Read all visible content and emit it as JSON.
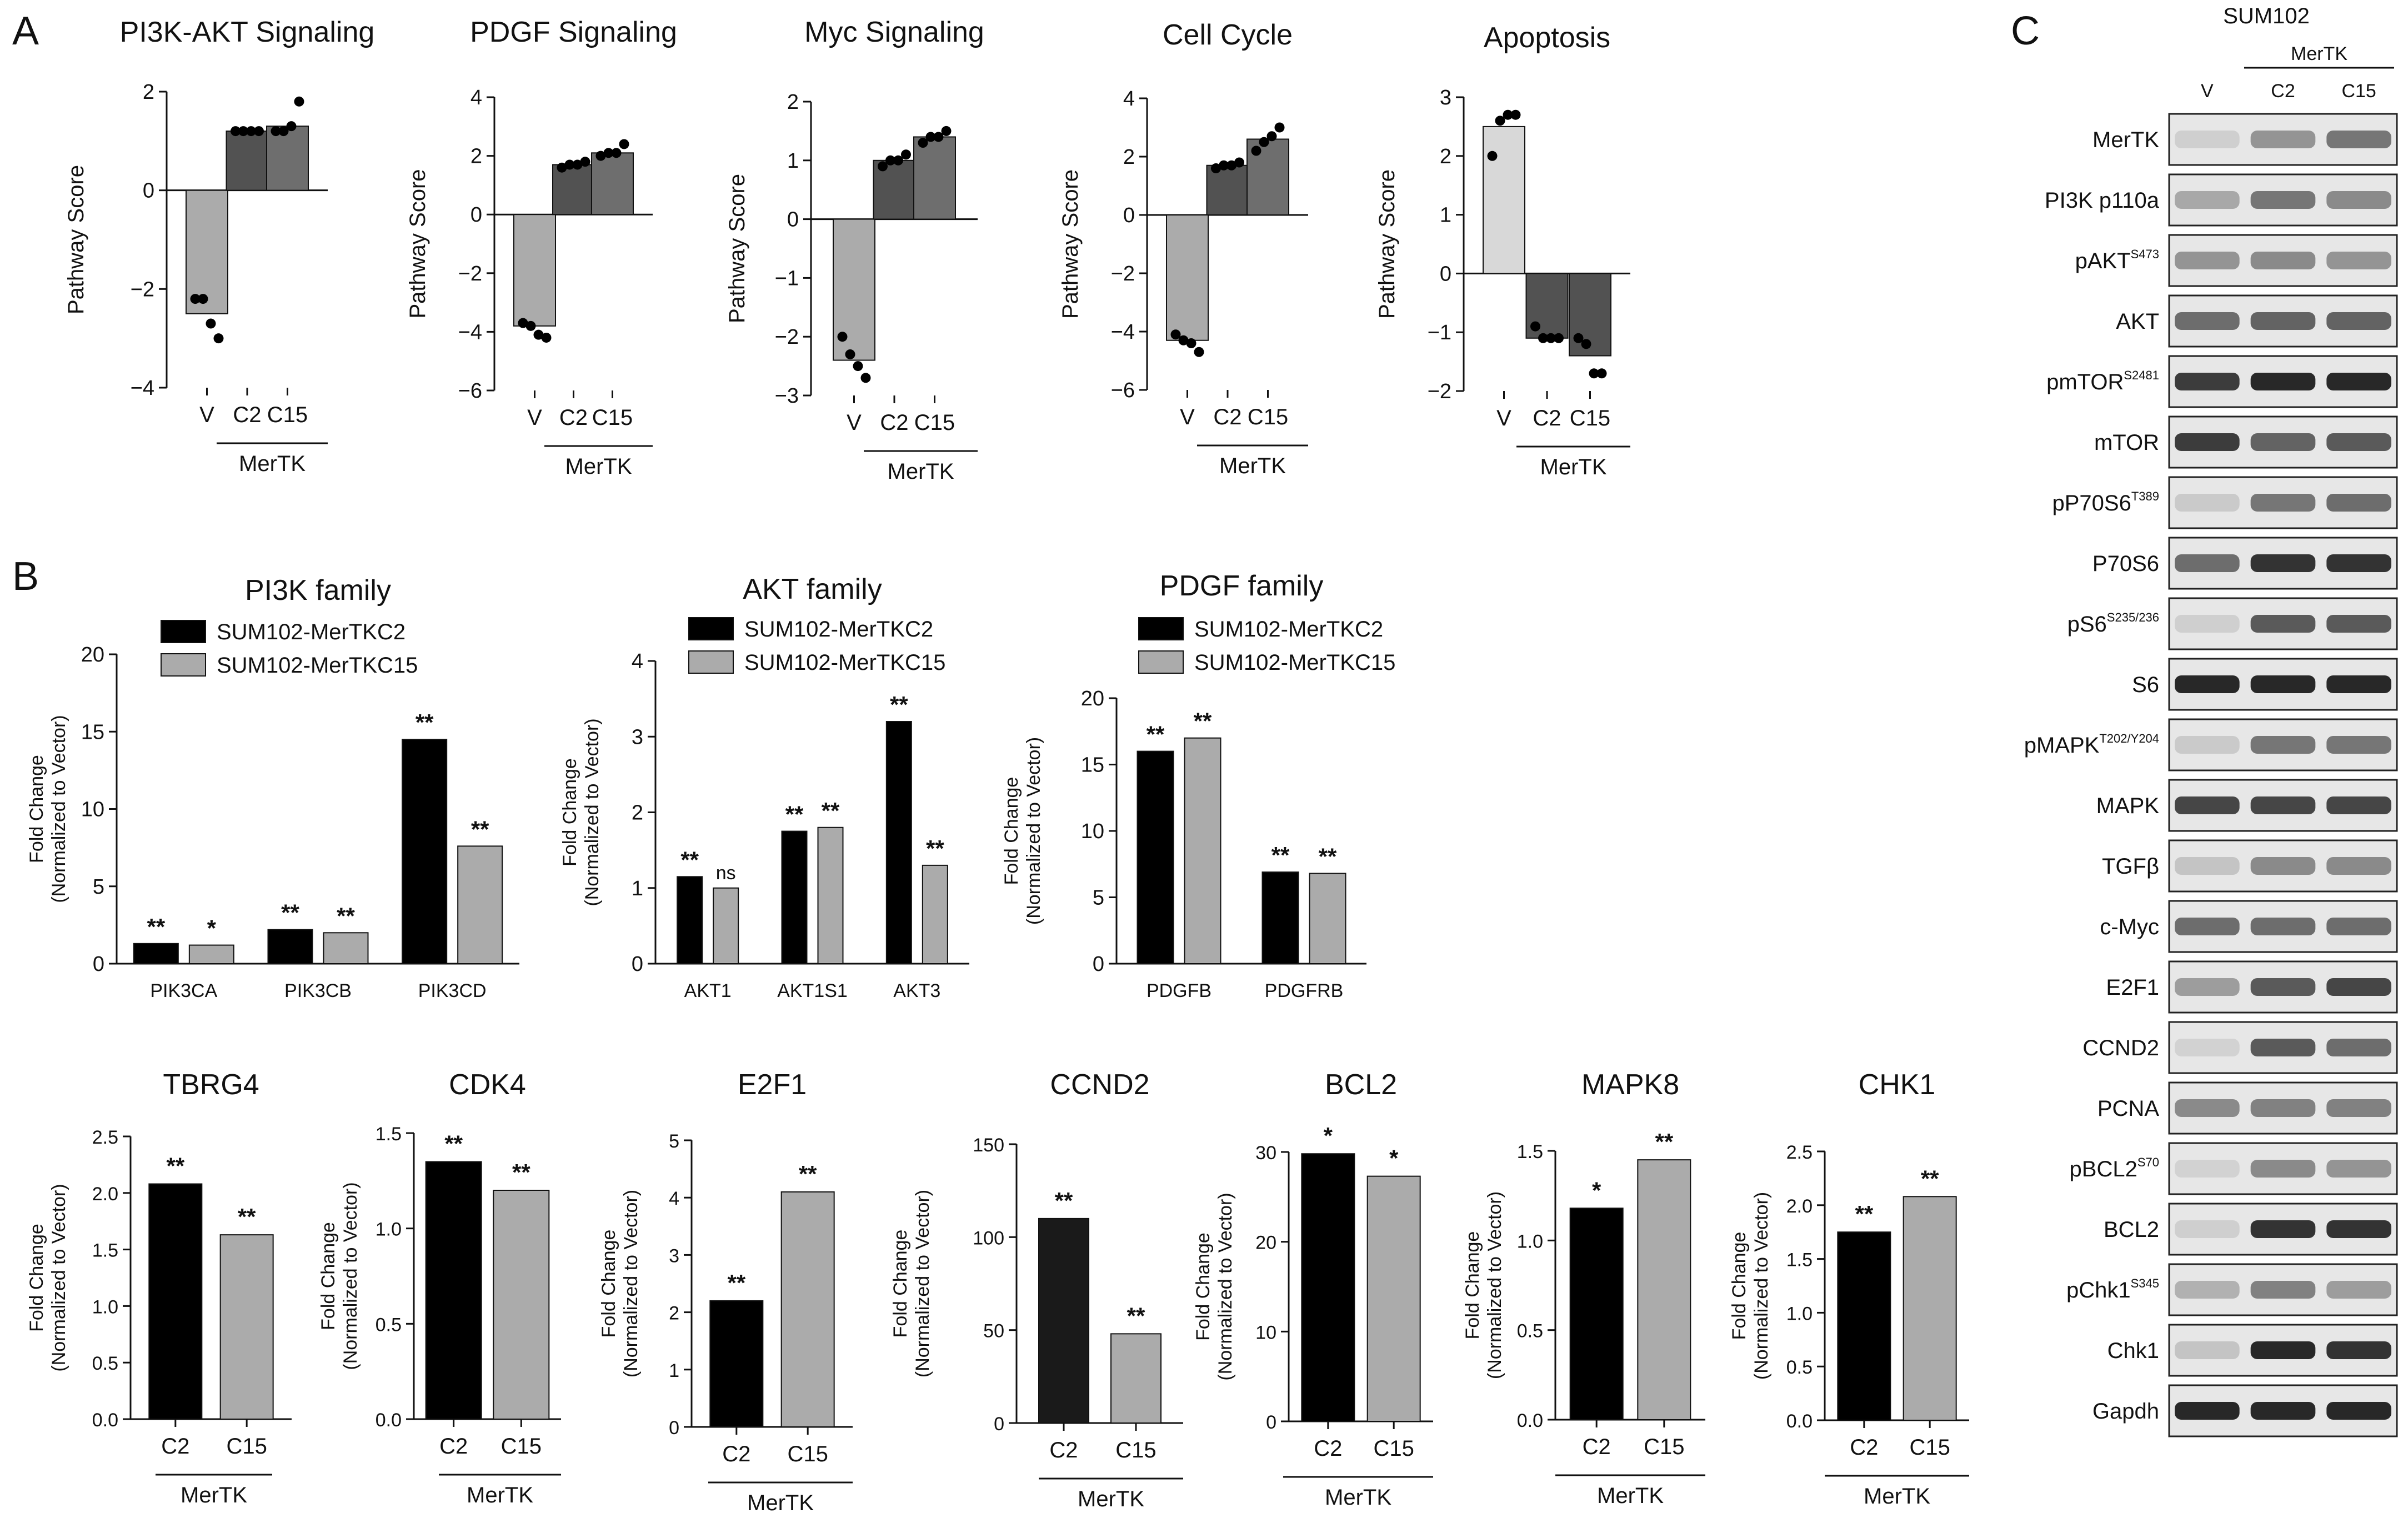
{
  "panels": {
    "a": "A",
    "b": "B",
    "c": "C"
  },
  "group_label": "MerTK",
  "colors": {
    "black": "#000000",
    "dark_gray": "#525252",
    "mid_gray": "#6e6e6e",
    "light_gray": "#ababab",
    "lighter_gray": "#d8d8d8"
  },
  "chart_data": [
    {
      "id": "a1",
      "type": "bar",
      "panel": "A",
      "title": "PI3K-AKT Signaling",
      "ylabel": "Pathway Score",
      "categories": [
        "V",
        "C2",
        "C15"
      ],
      "values": [
        -2.5,
        1.2,
        1.3
      ],
      "ylim": [
        -4,
        2
      ],
      "yticks": [
        2,
        0,
        -2,
        -4
      ],
      "points": [
        [
          -2.2,
          -2.2,
          -2.7,
          -3.0
        ],
        [
          1.2,
          1.2,
          1.2,
          1.2
        ],
        [
          1.2,
          1.2,
          1.3,
          1.8
        ]
      ],
      "bar_colors": [
        "#ababab",
        "#525252",
        "#6e6e6e"
      ],
      "group": "MerTK"
    },
    {
      "id": "a2",
      "type": "bar",
      "panel": "A",
      "title": "PDGF Signaling",
      "ylabel": "Pathway Score",
      "categories": [
        "V",
        "C2",
        "C15"
      ],
      "values": [
        -3.8,
        1.7,
        2.1
      ],
      "ylim": [
        -6,
        4
      ],
      "yticks": [
        4,
        2,
        0,
        -2,
        -4,
        -6
      ],
      "points": [
        [
          -3.7,
          -3.8,
          -4.1,
          -4.2
        ],
        [
          1.6,
          1.7,
          1.7,
          1.8
        ],
        [
          2.0,
          2.1,
          2.1,
          2.4
        ]
      ],
      "bar_colors": [
        "#ababab",
        "#525252",
        "#6e6e6e"
      ],
      "group": "MerTK"
    },
    {
      "id": "a3",
      "type": "bar",
      "panel": "A",
      "title": "Myc Signaling",
      "ylabel": "Pathway Score",
      "categories": [
        "V",
        "C2",
        "C15"
      ],
      "values": [
        -2.4,
        1.0,
        1.4
      ],
      "ylim": [
        -3,
        2
      ],
      "yticks": [
        2,
        1,
        0,
        -1,
        -2,
        -3
      ],
      "points": [
        [
          -2.0,
          -2.3,
          -2.5,
          -2.7
        ],
        [
          0.9,
          1.0,
          1.0,
          1.1
        ],
        [
          1.3,
          1.4,
          1.4,
          1.5
        ]
      ],
      "bar_colors": [
        "#ababab",
        "#525252",
        "#6e6e6e"
      ],
      "group": "MerTK"
    },
    {
      "id": "a4",
      "type": "bar",
      "panel": "A",
      "title": "Cell Cycle",
      "ylabel": "Pathway Score",
      "categories": [
        "V",
        "C2",
        "C15"
      ],
      "values": [
        -4.3,
        1.7,
        2.6
      ],
      "ylim": [
        -6,
        4
      ],
      "yticks": [
        4,
        2,
        0,
        -2,
        -4,
        -6
      ],
      "points": [
        [
          -4.1,
          -4.3,
          -4.4,
          -4.7
        ],
        [
          1.6,
          1.7,
          1.7,
          1.8
        ],
        [
          2.2,
          2.5,
          2.7,
          3.0
        ]
      ],
      "bar_colors": [
        "#ababab",
        "#525252",
        "#6e6e6e"
      ],
      "group": "MerTK"
    },
    {
      "id": "a5",
      "type": "bar",
      "panel": "A",
      "title": "Apoptosis",
      "ylabel": "Pathway Score",
      "categories": [
        "V",
        "C2",
        "C15"
      ],
      "values": [
        2.5,
        -1.1,
        -1.4
      ],
      "ylim": [
        -2,
        3
      ],
      "yticks": [
        3,
        2,
        1,
        0,
        -1,
        -2
      ],
      "points": [
        [
          2.0,
          2.6,
          2.7,
          2.7
        ],
        [
          -0.9,
          -1.1,
          -1.1,
          -1.1
        ],
        [
          -1.1,
          -1.2,
          -1.7,
          -1.7
        ]
      ],
      "bar_colors": [
        "#d8d8d8",
        "#525252",
        "#525252"
      ],
      "group": "MerTK"
    },
    {
      "id": "b1",
      "type": "bar",
      "panel": "B",
      "title": "PI3K family",
      "ylabel": [
        "Fold Change",
        "(Normalized to Vector)"
      ],
      "categories": [
        "PIK3CA",
        "PIK3CB",
        "PIK3CD"
      ],
      "ylim": [
        0,
        20
      ],
      "yticks": [
        20,
        15,
        10,
        5,
        0
      ],
      "series": [
        {
          "name": "SUM102-MerTKC2",
          "values": [
            1.3,
            2.2,
            14.5
          ],
          "labels": [
            "**",
            "**",
            "**"
          ]
        },
        {
          "name": "SUM102-MerTKC15",
          "values": [
            1.2,
            2.0,
            7.6
          ],
          "labels": [
            "*",
            "**",
            "**"
          ]
        }
      ],
      "series_colors": [
        "#000000",
        "#ababab"
      ]
    },
    {
      "id": "b2",
      "type": "bar",
      "panel": "B",
      "title": "AKT family",
      "ylabel": [
        "Fold Change",
        "(Normalized to Vector)"
      ],
      "categories": [
        "AKT1",
        "AKT1S1",
        "AKT3"
      ],
      "ylim": [
        0,
        4
      ],
      "yticks": [
        4,
        3,
        2,
        1,
        0
      ],
      "series": [
        {
          "name": "SUM102-MerTKC2",
          "values": [
            1.15,
            1.75,
            3.2
          ],
          "labels": [
            "**",
            "**",
            "**"
          ]
        },
        {
          "name": "SUM102-MerTKC15",
          "values": [
            1.0,
            1.8,
            1.3
          ],
          "labels": [
            "ns",
            "**",
            "**"
          ]
        }
      ],
      "series_colors": [
        "#000000",
        "#ababab"
      ]
    },
    {
      "id": "b3",
      "type": "bar",
      "panel": "B",
      "title": "PDGF family",
      "ylabel": [
        "Fold Change",
        "(Normalized to Vector)"
      ],
      "categories": [
        "PDGFB",
        "PDGFRB"
      ],
      "ylim": [
        0,
        20
      ],
      "yticks": [
        20,
        15,
        10,
        5,
        0
      ],
      "series": [
        {
          "name": "SUM102-MerTKC2",
          "values": [
            16.0,
            6.9
          ],
          "labels": [
            "**",
            "**"
          ]
        },
        {
          "name": "SUM102-MerTKC15",
          "values": [
            17.0,
            6.8
          ],
          "labels": [
            "**",
            "**"
          ]
        }
      ],
      "series_colors": [
        "#000000",
        "#ababab"
      ]
    },
    {
      "id": "b4",
      "type": "bar",
      "panel": "B",
      "title": "TBRG4",
      "ylabel": [
        "Fold Change",
        "(Normalized to Vector)"
      ],
      "categories": [
        "C2",
        "C15"
      ],
      "values": [
        2.08,
        1.63
      ],
      "labels": [
        "**",
        "**"
      ],
      "ylim": [
        0,
        2.5
      ],
      "yticks": [
        2.5,
        2.0,
        1.5,
        1.0,
        0.5,
        0.0
      ],
      "bar_colors": [
        "#000000",
        "#ababab"
      ],
      "group": "MerTK"
    },
    {
      "id": "b5",
      "type": "bar",
      "panel": "B",
      "title": "CDK4",
      "ylabel": [
        "Fold Change",
        "(Normalized to Vector)"
      ],
      "categories": [
        "C2",
        "C15"
      ],
      "values": [
        1.35,
        1.2
      ],
      "labels": [
        "**",
        "**"
      ],
      "ylim": [
        0,
        1.5
      ],
      "yticks": [
        1.5,
        1.0,
        0.5,
        0.0
      ],
      "bar_colors": [
        "#000000",
        "#ababab"
      ],
      "group": "MerTK"
    },
    {
      "id": "b6",
      "type": "bar",
      "panel": "B",
      "title": "E2F1",
      "ylabel": [
        "Fold Change",
        "(Normalized to Vector)"
      ],
      "categories": [
        "C2",
        "C15"
      ],
      "values": [
        2.2,
        4.1
      ],
      "labels": [
        "**",
        "**"
      ],
      "ylim": [
        0,
        5
      ],
      "yticks": [
        5,
        4,
        3,
        2,
        1,
        0
      ],
      "bar_colors": [
        "#000000",
        "#ababab"
      ],
      "group": "MerTK"
    },
    {
      "id": "b7",
      "type": "bar",
      "panel": "B",
      "title": "CCND2",
      "ylabel": [
        "Fold Change",
        "(Normalized to Vector)"
      ],
      "categories": [
        "C2",
        "C15"
      ],
      "values": [
        110,
        48
      ],
      "labels": [
        "**",
        "**"
      ],
      "ylim": [
        0,
        150
      ],
      "yticks": [
        150,
        100,
        50,
        0
      ],
      "bar_colors": [
        "#1a1a1a",
        "#ababab"
      ],
      "group": "MerTK"
    },
    {
      "id": "b8",
      "type": "bar",
      "panel": "B",
      "title": "BCL2",
      "ylabel": [
        "Fold Change",
        "(Normalized to Vector)"
      ],
      "categories": [
        "C2",
        "C15"
      ],
      "values": [
        29.8,
        27.3
      ],
      "labels": [
        "*",
        "*"
      ],
      "ylim": [
        0,
        30
      ],
      "yticks": [
        30,
        20,
        10,
        0
      ],
      "bar_colors": [
        "#000000",
        "#ababab"
      ],
      "group": "MerTK"
    },
    {
      "id": "b9",
      "type": "bar",
      "panel": "B",
      "title": "MAPK8",
      "ylabel": [
        "Fold Change",
        "(Normalized to Vector)"
      ],
      "categories": [
        "C2",
        "C15"
      ],
      "values": [
        1.18,
        1.45
      ],
      "labels": [
        "*",
        "**"
      ],
      "ylim": [
        0,
        1.5
      ],
      "yticks": [
        1.5,
        1.0,
        0.5,
        0.0
      ],
      "bar_colors": [
        "#000000",
        "#ababab"
      ],
      "group": "MerTK"
    },
    {
      "id": "b10",
      "type": "bar",
      "panel": "B",
      "title": "CHK1",
      "ylabel": [
        "Fold Change",
        "(Normalized to Vector)"
      ],
      "categories": [
        "C2",
        "C15"
      ],
      "values": [
        1.75,
        2.08
      ],
      "labels": [
        "**",
        "**"
      ],
      "ylim": [
        0,
        2.5
      ],
      "yticks": [
        2.5,
        2.0,
        1.5,
        1.0,
        0.5,
        0.0
      ],
      "bar_colors": [
        "#000000",
        "#ababab"
      ],
      "group": "MerTK"
    }
  ],
  "western_blot": {
    "cell_line": "SUM102",
    "group": "MerTK",
    "lanes": [
      "V",
      "C2",
      "C15"
    ],
    "bands": [
      {
        "label": "MerTK",
        "sup": "",
        "intensity": [
          0.1,
          0.4,
          0.55
        ]
      },
      {
        "label": "PI3K p110a",
        "sup": "",
        "intensity": [
          0.3,
          0.55,
          0.45
        ]
      },
      {
        "label": "pAKT",
        "sup": "S473",
        "intensity": [
          0.4,
          0.45,
          0.4
        ]
      },
      {
        "label": "AKT",
        "sup": "",
        "intensity": [
          0.6,
          0.65,
          0.65
        ]
      },
      {
        "label": "pmTOR",
        "sup": "S2481",
        "intensity": [
          0.85,
          0.95,
          0.95
        ]
      },
      {
        "label": "mTOR",
        "sup": "",
        "intensity": [
          0.85,
          0.65,
          0.7
        ]
      },
      {
        "label": "pP70S6",
        "sup": "T389",
        "intensity": [
          0.12,
          0.55,
          0.6
        ]
      },
      {
        "label": "P70S6",
        "sup": "",
        "intensity": [
          0.6,
          0.9,
          0.9
        ]
      },
      {
        "label": "pS6",
        "sup": "S235/236",
        "intensity": [
          0.1,
          0.7,
          0.7
        ]
      },
      {
        "label": "S6",
        "sup": "",
        "intensity": [
          0.95,
          0.95,
          0.95
        ]
      },
      {
        "label": "pMAPK",
        "sup": "T202/Y204",
        "intensity": [
          0.12,
          0.55,
          0.55
        ]
      },
      {
        "label": "MAPK",
        "sup": "",
        "intensity": [
          0.8,
          0.8,
          0.8
        ]
      },
      {
        "label": "TGFβ",
        "sup": "",
        "intensity": [
          0.15,
          0.45,
          0.45
        ]
      },
      {
        "label": "c-Myc",
        "sup": "",
        "intensity": [
          0.6,
          0.6,
          0.6
        ]
      },
      {
        "label": "E2F1",
        "sup": "",
        "intensity": [
          0.35,
          0.7,
          0.8
        ]
      },
      {
        "label": "CCND2",
        "sup": "",
        "intensity": [
          0.08,
          0.7,
          0.6
        ]
      },
      {
        "label": "PCNA",
        "sup": "",
        "intensity": [
          0.45,
          0.5,
          0.5
        ]
      },
      {
        "label": "pBCL2",
        "sup": "S70",
        "intensity": [
          0.08,
          0.45,
          0.4
        ]
      },
      {
        "label": "BCL2",
        "sup": "",
        "intensity": [
          0.1,
          0.9,
          0.9
        ]
      },
      {
        "label": "pChk1",
        "sup": "S345",
        "intensity": [
          0.25,
          0.5,
          0.35
        ]
      },
      {
        "label": "Chk1",
        "sup": "",
        "intensity": [
          0.15,
          0.95,
          0.9
        ]
      },
      {
        "label": "Gapdh",
        "sup": "",
        "intensity": [
          0.95,
          0.95,
          0.95
        ]
      }
    ]
  }
}
